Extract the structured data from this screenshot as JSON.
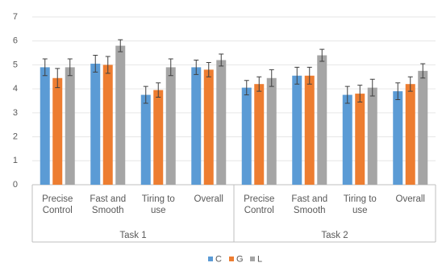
{
  "chart_data": {
    "type": "bar",
    "categories": [
      "Precise Control",
      "Fast and Smooth",
      "Tiring to use",
      "Overall",
      "Precise Control",
      "Fast and Smooth",
      "Tiring to use",
      "Overall"
    ],
    "groups": [
      "Task 1",
      "Task 2"
    ],
    "series": [
      {
        "name": "C",
        "color": "#5b9bd5",
        "values": [
          4.9,
          5.05,
          3.75,
          4.9,
          4.05,
          4.55,
          3.75,
          3.9
        ],
        "errors": [
          0.35,
          0.35,
          0.35,
          0.3,
          0.3,
          0.35,
          0.35,
          0.35
        ]
      },
      {
        "name": "G",
        "color": "#ed7d31",
        "values": [
          4.45,
          5.0,
          3.95,
          4.8,
          4.2,
          4.55,
          3.8,
          4.2
        ],
        "errors": [
          0.4,
          0.35,
          0.3,
          0.3,
          0.3,
          0.35,
          0.35,
          0.3
        ]
      },
      {
        "name": "L",
        "color": "#a5a5a5",
        "values": [
          4.9,
          5.8,
          4.9,
          5.2,
          4.45,
          5.4,
          4.05,
          4.75
        ],
        "errors": [
          0.35,
          0.25,
          0.35,
          0.25,
          0.35,
          0.25,
          0.35,
          0.3
        ]
      }
    ],
    "ylim": [
      0,
      7
    ],
    "yticks": [
      0,
      1,
      2,
      3,
      4,
      5,
      6,
      7
    ],
    "grid": true,
    "legend": "bottom"
  }
}
